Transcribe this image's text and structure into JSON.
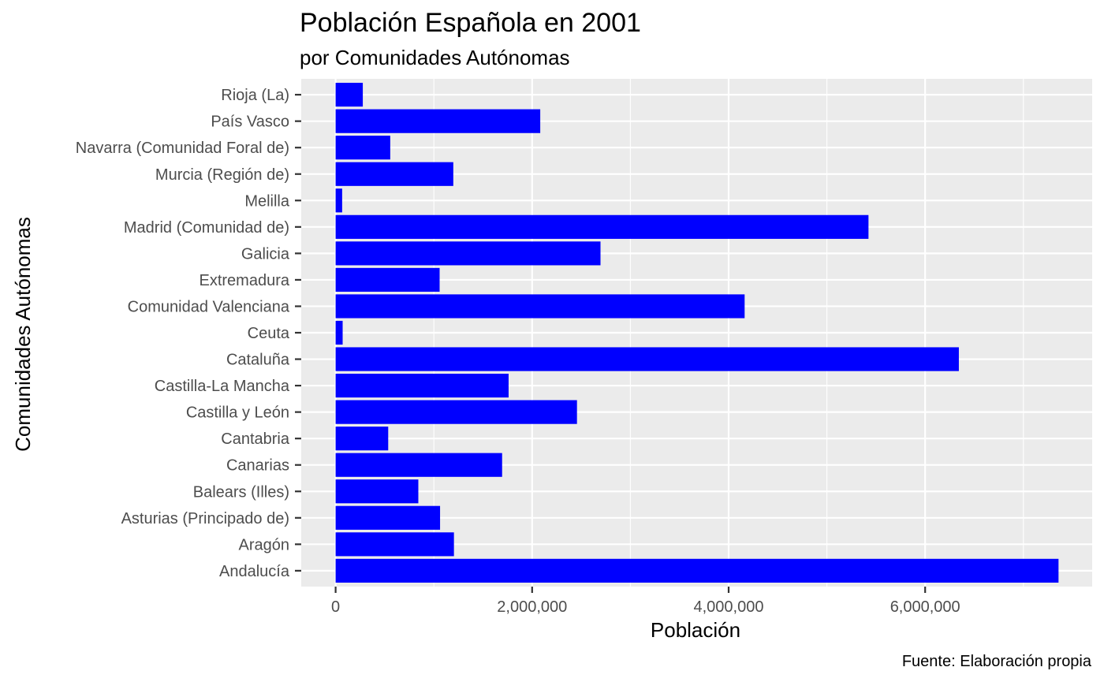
{
  "chart_data": {
    "type": "bar",
    "orientation": "horizontal",
    "title": "Población Española en 2001",
    "subtitle": "por Comunidades Autónomas",
    "xlabel": "Población",
    "ylabel": "Comunidades Autónomas",
    "caption": "Fuente: Elaboración propia",
    "bar_color": "#0000ff",
    "panel_background": "#ebebeb",
    "grid_color": "#ffffff",
    "grid": true,
    "xlim": [
      -350000,
      7700000
    ],
    "x_ticks": [
      0,
      2000000,
      4000000,
      6000000
    ],
    "x_tick_labels": [
      "0",
      "2,000,000",
      "4,000,000",
      "6,000,000"
    ],
    "categories": [
      "Andalucía",
      "Aragón",
      "Asturias (Principado de)",
      "Balears (Illes)",
      "Canarias",
      "Cantabria",
      "Castilla y León",
      "Castilla-La Mancha",
      "Cataluña",
      "Ceuta",
      "Comunidad Valenciana",
      "Extremadura",
      "Galicia",
      "Madrid (Comunidad de)",
      "Melilla",
      "Murcia (Región de)",
      "Navarra (Comunidad Foral de)",
      "País Vasco",
      "Rioja (La)"
    ],
    "values": [
      7357558,
      1204215,
      1062998,
      841669,
      1694477,
      535131,
      2456474,
      1760516,
      6343110,
      71505,
      4162776,
      1058503,
      2695880,
      5423384,
      66411,
      1197646,
      555829,
      2082587,
      276702
    ]
  }
}
